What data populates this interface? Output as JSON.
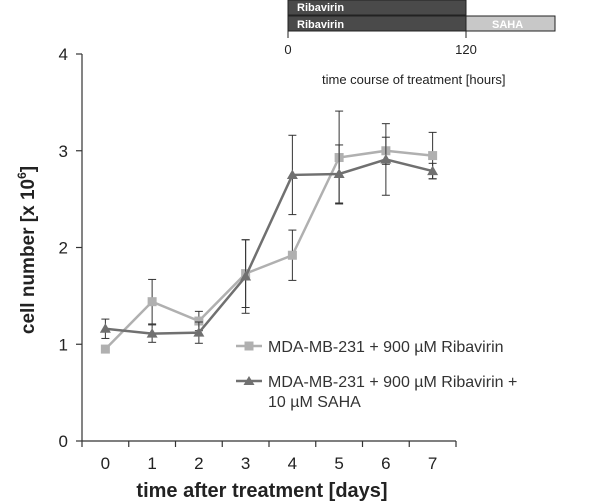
{
  "chart_data": {
    "type": "line",
    "title": "",
    "xlabel": "time after treatment [days]",
    "ylabel_main": "cell number [x 10",
    "ylabel_sup": "6",
    "ylabel_end": "]",
    "x": [
      0,
      1,
      2,
      3,
      4,
      5,
      6,
      7
    ],
    "x_tick_labels": [
      "0",
      "1",
      "2",
      "3",
      "4",
      "5",
      "6",
      "7"
    ],
    "y_tick_labels": [
      "0",
      "1",
      "2",
      "3",
      "4"
    ],
    "xlim": [
      -0.5,
      7.5
    ],
    "ylim": [
      0,
      4
    ],
    "grid": false,
    "legend_position": "right",
    "series": [
      {
        "name": "MDA-MB-231 + 900 µM Ribavirin",
        "marker": "square",
        "color": "#b0b0b0",
        "values": [
          0.95,
          1.44,
          1.24,
          1.73,
          1.92,
          2.93,
          3.0,
          2.95
        ],
        "errors": [
          0.03,
          0.23,
          0.1,
          0.35,
          0.26,
          0.48,
          0.14,
          0.24
        ]
      },
      {
        "name": "MDA-MB-231 + 900 µM Ribavirin + 10 µM SAHA",
        "name_line1": "MDA-MB-231 + 900 µM Ribavirin +",
        "name_line2": "10 µM SAHA",
        "marker": "triangle",
        "color": "#707070",
        "values": [
          1.16,
          1.11,
          1.12,
          1.7,
          2.75,
          2.76,
          2.91,
          2.79
        ],
        "errors": [
          0.1,
          0.09,
          0.11,
          0.38,
          0.41,
          0.3,
          0.37,
          0.08
        ]
      }
    ],
    "inset": {
      "top_bar_label": "Ribavirin",
      "bottom_bar_label_1": "Ribavirin",
      "bottom_bar_label_2": "SAHA",
      "tick_start": "0",
      "tick_mid": "120",
      "caption": "time course of treatment [hours]",
      "ribavirin_hours": [
        0,
        120
      ],
      "saha_hours": [
        120,
        180
      ],
      "dark_color": "#4a4a4a",
      "light_color": "#c8c8c8"
    }
  }
}
